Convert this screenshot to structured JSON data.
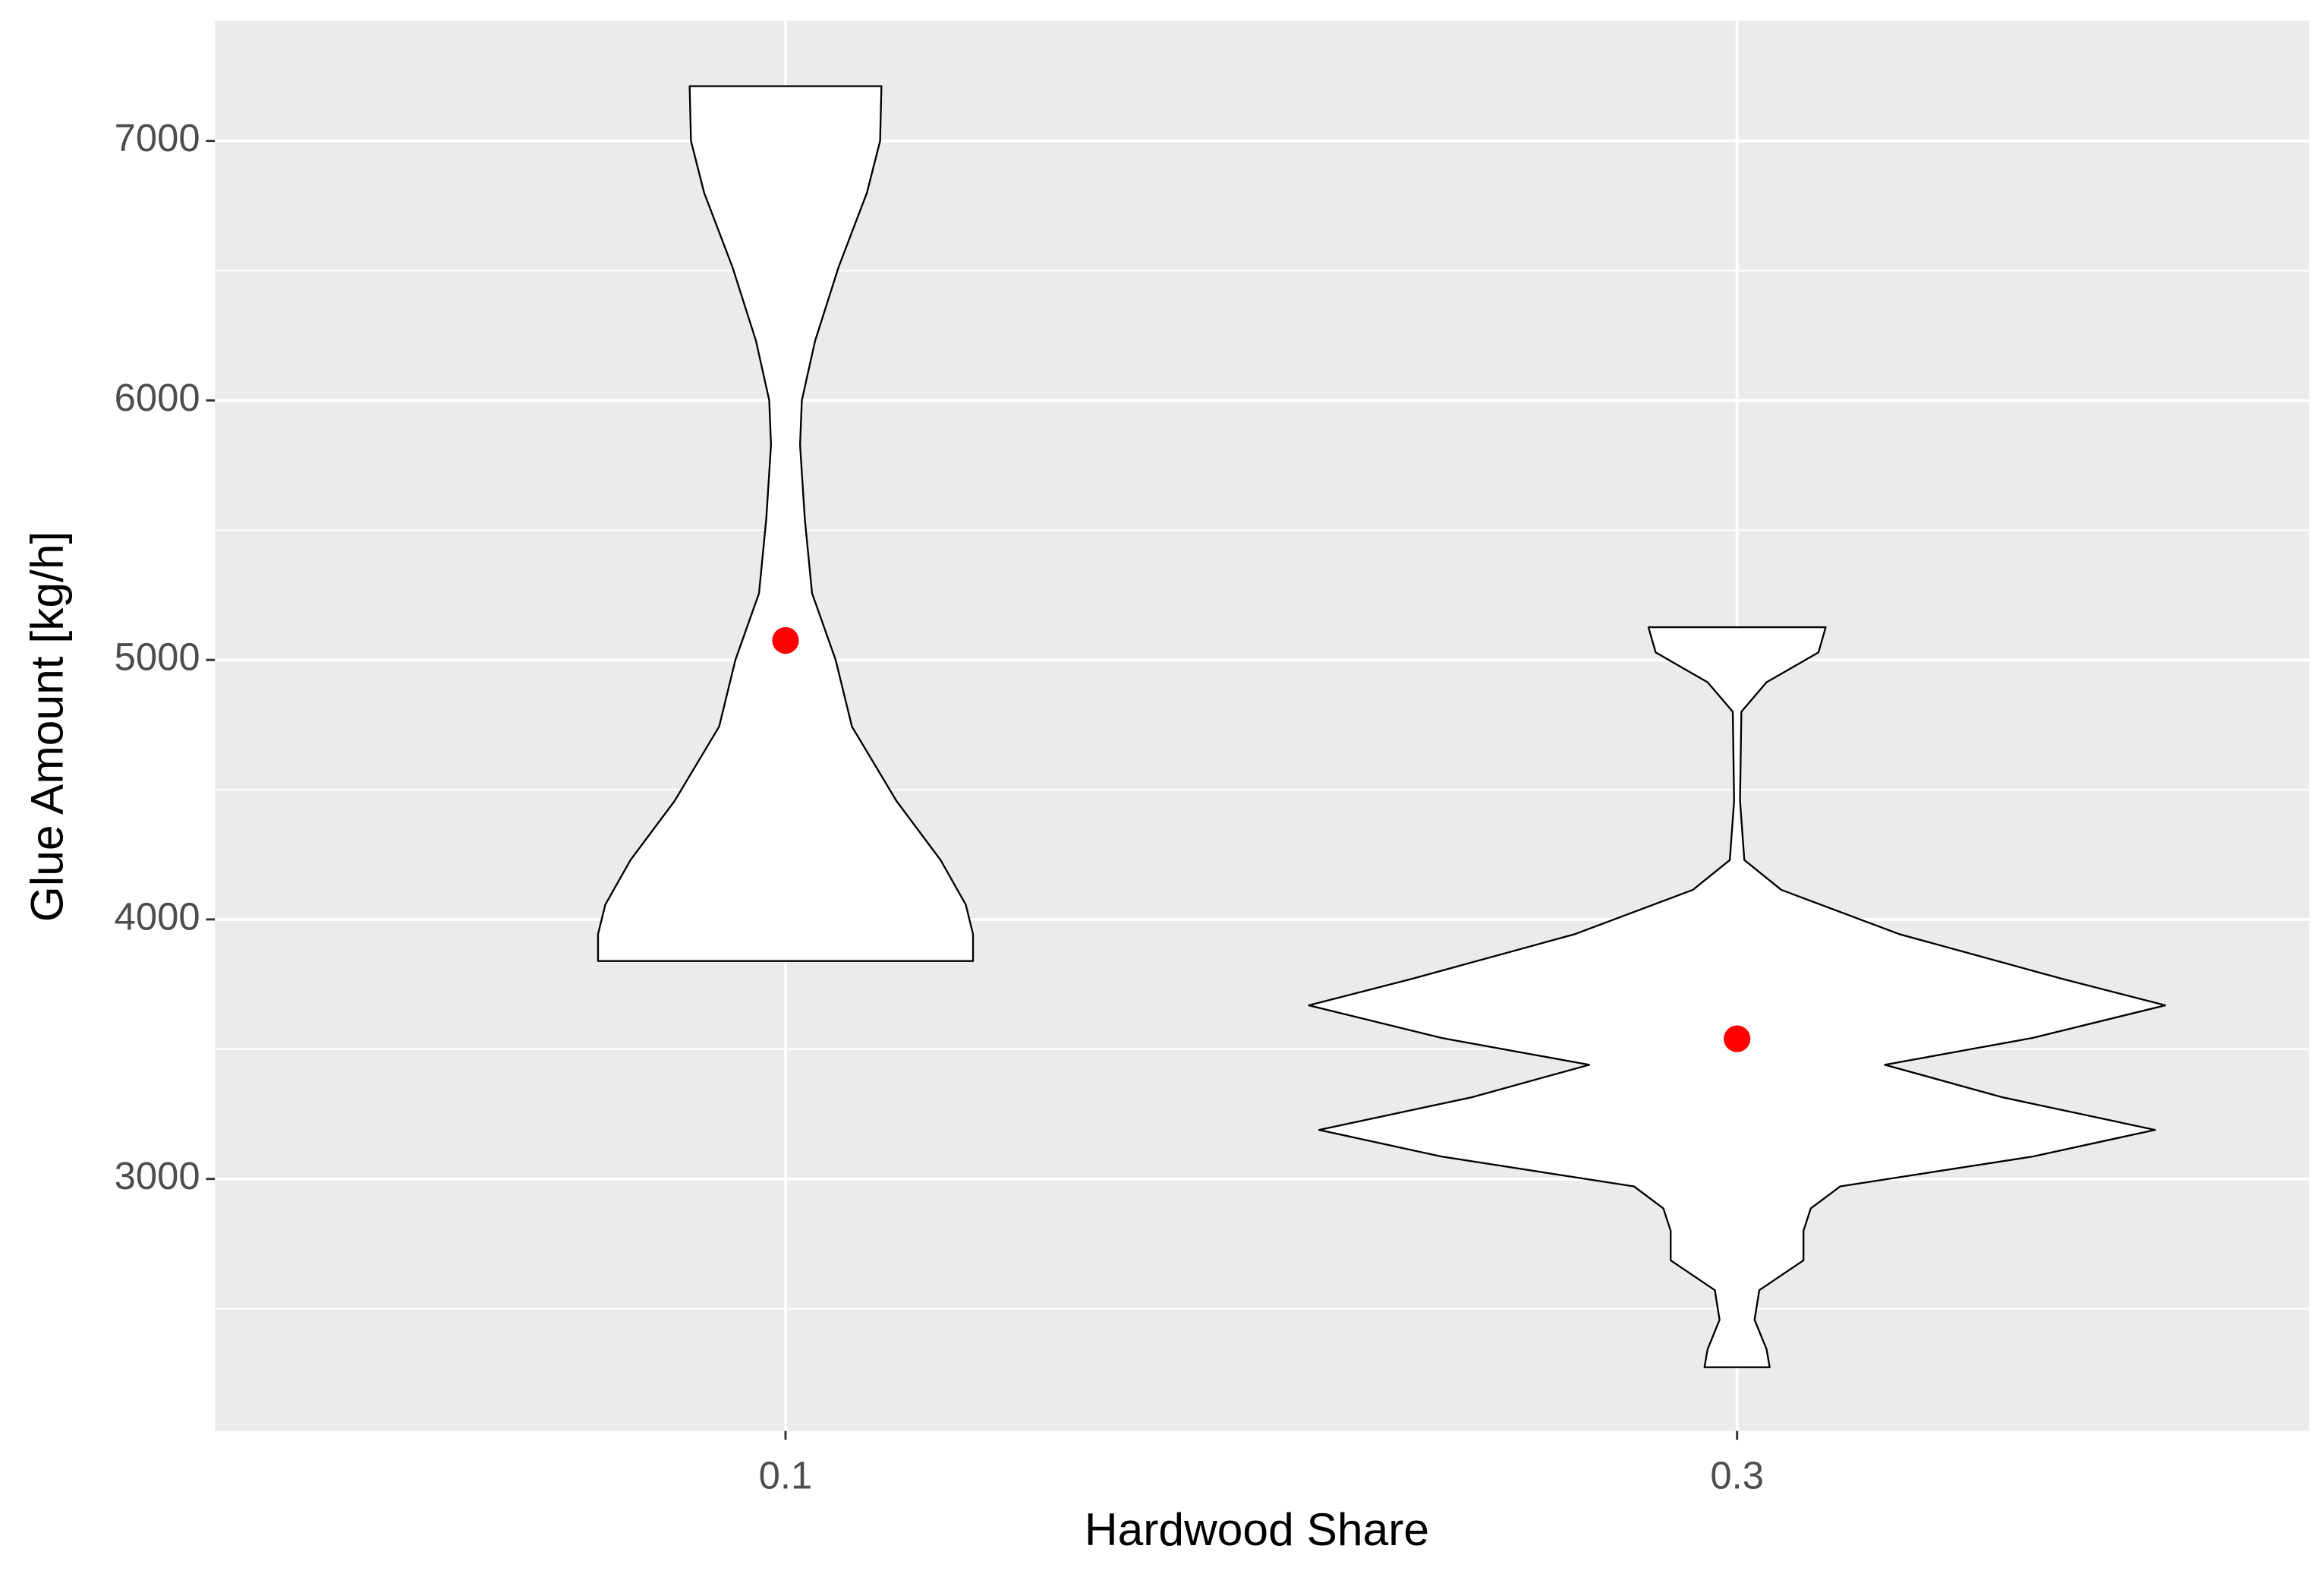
{
  "chart_data": {
    "type": "violin",
    "x_label": "Hardwood Share",
    "y_label": "Glue Amount [kg/h]",
    "categories": [
      "0.1",
      "0.3"
    ],
    "ylim": [
      2029,
      7463
    ],
    "yticks": [
      3000,
      4000,
      5000,
      6000,
      7000
    ],
    "minor_yticks": [
      2500,
      3500,
      4500,
      5500,
      6500
    ],
    "grid": true,
    "fill": "#ffffff",
    "outline": "#000000",
    "violins": [
      {
        "y": [
          7211,
          7000,
          6800,
          6514,
          6229,
          6000,
          5829,
          5543,
          5257,
          5000,
          4743,
          4457,
          4229,
          4057,
          3943,
          3840
        ],
        "widths": [
          0.224,
          0.221,
          0.19,
          0.124,
          0.069,
          0.038,
          0.034,
          0.045,
          0.062,
          0.117,
          0.155,
          0.259,
          0.362,
          0.421,
          0.438,
          0.438
        ]
      },
      {
        "y": [
          5126,
          5029,
          4914,
          4800,
          4457,
          4229,
          4114,
          3943,
          3771,
          3669,
          3543,
          3440,
          3314,
          3189,
          3086,
          2971,
          2886,
          2800,
          2686,
          2571,
          2457,
          2343,
          2274
        ],
        "widths": [
          0.207,
          0.19,
          0.069,
          0.01,
          0.007,
          0.017,
          0.103,
          0.379,
          0.759,
          1.0,
          0.69,
          0.345,
          0.621,
          0.976,
          0.69,
          0.241,
          0.172,
          0.155,
          0.155,
          0.052,
          0.041,
          0.069,
          0.076
        ]
      }
    ],
    "means": [
      5075,
      3540
    ],
    "mean_color": "#ff0000"
  }
}
